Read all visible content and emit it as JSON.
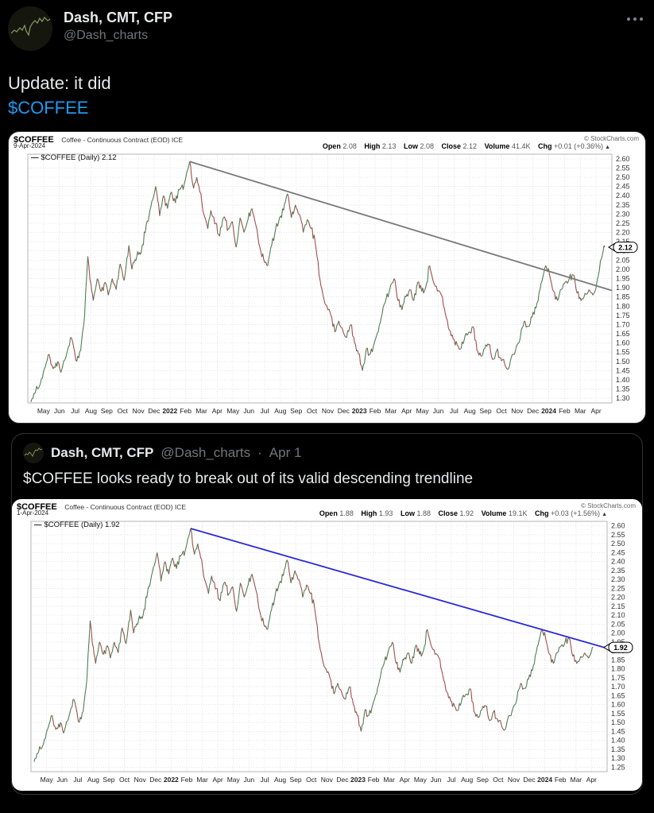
{
  "tweet": {
    "author_name": "Dash, CMT, CFP",
    "author_handle": "@Dash_charts",
    "text_line1": "Update: it did",
    "cashtag": "$COFFEE"
  },
  "quote": {
    "author_name": "Dash, CMT, CFP",
    "author_handle": "@Dash_charts",
    "separator": "·",
    "date": "Apr 1",
    "text": "$COFFEE looks ready to break out of its valid descending trendline"
  },
  "chart_labels": {
    "open": "Open",
    "high": "High",
    "low": "Low",
    "close": "Close",
    "volume": "Volume",
    "chg": "Chg",
    "legend_dash": "—"
  },
  "chart_data": {
    "type": "line",
    "shared": {
      "up_color": "#4e7f52",
      "down_color": "#a14c4c",
      "grid": true,
      "x_labels": [
        "May",
        "Jun",
        "Jul",
        "Aug",
        "Sep",
        "Oct",
        "Nov",
        "Dec",
        "2022",
        "Feb",
        "Mar",
        "Apr",
        "May",
        "Jun",
        "Jul",
        "Aug",
        "Sep",
        "Oct",
        "Nov",
        "Dec",
        "2023",
        "Feb",
        "Mar",
        "Apr",
        "May",
        "Jun",
        "Jul",
        "Aug",
        "Sep",
        "Oct",
        "Nov",
        "Dec",
        "2024",
        "Feb",
        "Mar",
        "Apr"
      ],
      "series_base_anchors": [
        [
          0.2,
          1.28
        ],
        [
          0.5,
          1.34
        ],
        [
          0.8,
          1.38
        ],
        [
          1.1,
          1.47
        ],
        [
          1.35,
          1.54
        ],
        [
          1.6,
          1.46
        ],
        [
          1.9,
          1.5
        ],
        [
          2.1,
          1.44
        ],
        [
          2.4,
          1.52
        ],
        [
          2.7,
          1.63
        ],
        [
          2.9,
          1.58
        ],
        [
          3.1,
          1.5
        ],
        [
          3.35,
          1.56
        ],
        [
          3.6,
          1.75
        ],
        [
          3.8,
          2.07
        ],
        [
          4.0,
          1.92
        ],
        [
          4.15,
          1.83
        ],
        [
          4.4,
          1.95
        ],
        [
          4.65,
          1.88
        ],
        [
          4.9,
          1.93
        ],
        [
          5.1,
          1.86
        ],
        [
          5.35,
          1.95
        ],
        [
          5.6,
          1.89
        ],
        [
          5.85,
          2.03
        ],
        [
          6.1,
          1.94
        ],
        [
          6.4,
          2.13
        ],
        [
          6.6,
          2.0
        ],
        [
          6.9,
          2.07
        ],
        [
          7.2,
          2.1
        ],
        [
          7.5,
          2.24
        ],
        [
          7.8,
          2.34
        ],
        [
          8.1,
          2.45
        ],
        [
          8.35,
          2.29
        ],
        [
          8.6,
          2.4
        ],
        [
          8.85,
          2.33
        ],
        [
          9.1,
          2.42
        ],
        [
          9.35,
          2.36
        ],
        [
          9.6,
          2.43
        ],
        [
          9.9,
          2.46
        ],
        [
          10.25,
          2.585
        ],
        [
          10.5,
          2.44
        ],
        [
          10.7,
          2.5
        ],
        [
          10.9,
          2.42
        ],
        [
          11.15,
          2.3
        ],
        [
          11.4,
          2.22
        ],
        [
          11.6,
          2.32
        ],
        [
          11.9,
          2.25
        ],
        [
          12.15,
          2.18
        ],
        [
          12.4,
          2.28
        ],
        [
          12.7,
          2.22
        ],
        [
          12.95,
          2.26
        ],
        [
          13.2,
          2.12
        ],
        [
          13.45,
          2.28
        ],
        [
          13.7,
          2.2
        ],
        [
          13.95,
          2.27
        ],
        [
          14.2,
          2.33
        ],
        [
          14.45,
          2.24
        ],
        [
          14.7,
          2.12
        ],
        [
          14.95,
          2.05
        ],
        [
          15.2,
          2.02
        ],
        [
          15.45,
          2.13
        ],
        [
          15.7,
          2.22
        ],
        [
          15.95,
          2.28
        ],
        [
          16.2,
          2.32
        ],
        [
          16.45,
          2.41
        ],
        [
          16.7,
          2.28
        ],
        [
          16.95,
          2.35
        ],
        [
          17.2,
          2.3
        ],
        [
          17.45,
          2.2
        ],
        [
          17.7,
          2.27
        ],
        [
          17.95,
          2.22
        ],
        [
          18.2,
          2.15
        ],
        [
          18.45,
          1.97
        ],
        [
          18.7,
          1.86
        ],
        [
          18.95,
          1.8
        ],
        [
          19.2,
          1.75
        ],
        [
          19.45,
          1.66
        ],
        [
          19.7,
          1.72
        ],
        [
          19.95,
          1.67
        ],
        [
          20.2,
          1.63
        ],
        [
          20.45,
          1.7
        ],
        [
          20.7,
          1.6
        ],
        [
          20.95,
          1.54
        ],
        [
          21.2,
          1.45
        ],
        [
          21.45,
          1.57
        ],
        [
          21.7,
          1.54
        ],
        [
          21.95,
          1.6
        ],
        [
          22.2,
          1.66
        ],
        [
          22.45,
          1.76
        ],
        [
          22.7,
          1.84
        ],
        [
          22.95,
          1.9
        ],
        [
          23.2,
          1.95
        ],
        [
          23.45,
          1.83
        ],
        [
          23.7,
          1.78
        ],
        [
          23.95,
          1.85
        ],
        [
          24.2,
          1.89
        ],
        [
          24.45,
          1.83
        ],
        [
          24.7,
          1.93
        ],
        [
          24.95,
          1.88
        ],
        [
          25.2,
          1.9
        ],
        [
          25.45,
          2.02
        ],
        [
          25.7,
          1.93
        ],
        [
          25.95,
          1.88
        ],
        [
          26.2,
          1.86
        ],
        [
          26.45,
          1.76
        ],
        [
          26.7,
          1.67
        ],
        [
          26.95,
          1.62
        ],
        [
          27.2,
          1.59
        ],
        [
          27.45,
          1.57
        ],
        [
          27.7,
          1.64
        ],
        [
          27.95,
          1.66
        ],
        [
          28.2,
          1.69
        ],
        [
          28.45,
          1.56
        ],
        [
          28.7,
          1.53
        ],
        [
          28.95,
          1.57
        ],
        [
          29.2,
          1.59
        ],
        [
          29.45,
          1.51
        ],
        [
          29.7,
          1.56
        ],
        [
          29.95,
          1.52
        ],
        [
          30.2,
          1.49
        ],
        [
          30.45,
          1.46
        ],
        [
          30.7,
          1.54
        ],
        [
          30.95,
          1.58
        ],
        [
          31.2,
          1.63
        ],
        [
          31.45,
          1.72
        ],
        [
          31.7,
          1.69
        ],
        [
          31.95,
          1.74
        ],
        [
          32.2,
          1.79
        ],
        [
          32.45,
          1.89
        ],
        [
          32.8,
          2.02
        ],
        [
          33.05,
          1.97
        ],
        [
          33.3,
          1.88
        ],
        [
          33.55,
          1.83
        ],
        [
          33.8,
          1.89
        ],
        [
          34.05,
          1.93
        ],
        [
          34.3,
          1.95
        ],
        [
          34.55,
          1.97
        ],
        [
          34.8,
          1.87
        ],
        [
          35.05,
          1.83
        ],
        [
          35.3,
          1.87
        ],
        [
          35.55,
          1.89
        ],
        [
          35.8,
          1.86
        ],
        [
          36.0,
          1.9
        ]
      ]
    },
    "charts": [
      {
        "title": "$COFFEE Coffee - Continuous Contract (EOD) ICE",
        "symbol": "$COFFEE",
        "description": "Coffee - Continuous Contract (EOD) ICE",
        "copyright": "© StockCharts.com",
        "date": "9-Apr-2024",
        "legend": "$COFFEE (Daily) 2.12",
        "ohlc": {
          "open": "2.08",
          "high": "2.13",
          "low": "2.08",
          "close": "2.12",
          "volume": "41.4K",
          "chg": "+0.01 (+0.36%)",
          "direction_arrow": "▲"
        },
        "last_price": 2.12,
        "last_price_label": "2.12",
        "ylim": [
          1.275,
          2.625
        ],
        "y_ticks": [
          2.6,
          2.55,
          2.5,
          2.45,
          2.4,
          2.35,
          2.3,
          2.25,
          2.2,
          2.15,
          2.1,
          2.05,
          2.0,
          1.95,
          1.9,
          1.85,
          1.8,
          1.75,
          1.7,
          1.65,
          1.6,
          1.55,
          1.5,
          1.45,
          1.4,
          1.35,
          1.3
        ],
        "x_domain": 37,
        "series_tail": [
          [
            36.2,
            1.99
          ],
          [
            36.35,
            2.06
          ],
          [
            36.5,
            2.13
          ],
          [
            36.55,
            2.12
          ]
        ],
        "trendline": {
          "color": "#787878",
          "from": [
            10.25,
            2.585
          ],
          "to": [
            37,
            1.885
          ]
        },
        "seed": 11
      },
      {
        "title": "$COFFEE Coffee - Continuous Contract (EOD) ICE",
        "symbol": "$COFFEE",
        "description": "Coffee - Continuous Contract (EOD) ICE",
        "copyright": "© StockCharts.com",
        "date": "1-Apr-2024",
        "legend": "$COFFEE (Daily) 1.92",
        "ohlc": {
          "open": "1.88",
          "high": "1.93",
          "low": "1.88",
          "close": "1.92",
          "volume": "19.1K",
          "chg": "+0.03 (+1.56%)",
          "direction_arrow": "▲"
        },
        "last_price": 1.92,
        "last_price_label": "1.92",
        "ylim": [
          1.225,
          2.625
        ],
        "y_ticks": [
          2.6,
          2.55,
          2.5,
          2.45,
          2.4,
          2.35,
          2.3,
          2.25,
          2.2,
          2.15,
          2.1,
          2.05,
          2.0,
          1.95,
          1.9,
          1.85,
          1.8,
          1.75,
          1.7,
          1.65,
          1.6,
          1.55,
          1.5,
          1.45,
          1.4,
          1.35,
          1.3,
          1.25
        ],
        "x_domain": 37,
        "series_tail": [
          [
            36.1,
            1.92
          ]
        ],
        "trendline": {
          "color": "#2a2ad4",
          "from": [
            10.25,
            2.585
          ],
          "to": [
            37,
            1.915
          ]
        },
        "seed": 11
      }
    ]
  }
}
